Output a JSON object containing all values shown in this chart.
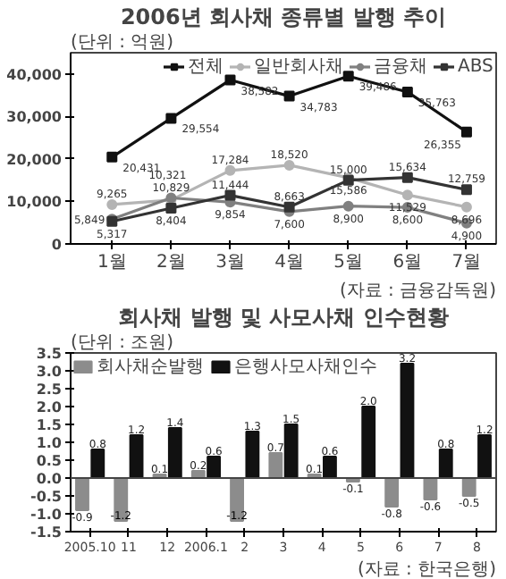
{
  "chart_data": [
    {
      "type": "line",
      "title": "2006년 회사채 종류별 발행 추이",
      "categories": [
        "1월",
        "2월",
        "3월",
        "4월",
        "5월",
        "6월",
        "7월"
      ],
      "series": [
        {
          "name": "전체",
          "color": "#111111",
          "marker": "square",
          "values": [
            20431,
            29554,
            38582,
            34783,
            39486,
            35763,
            26355
          ],
          "value_labels": [
            "20,431",
            "29,554",
            "38,582",
            "34,783",
            "39,486",
            "35,763",
            "26,355"
          ]
        },
        {
          "name": "일반회사채",
          "color": "#b4b4b4",
          "marker": "circle",
          "values": [
            9265,
            10321,
            17284,
            18520,
            15586,
            11529,
            8696
          ],
          "value_labels": [
            "9,265",
            "10,321",
            "17,284",
            "18,520",
            "15,586",
            "11,529",
            "8,696"
          ]
        },
        {
          "name": "금융채",
          "color": "#808080",
          "marker": "circle",
          "values": [
            5849,
            10829,
            9854,
            7600,
            8900,
            8600,
            4900
          ],
          "value_labels": [
            "5,849",
            "10,829",
            "9,854",
            "7,600",
            "8,900",
            "8,600",
            "4,900"
          ]
        },
        {
          "name": "ABS",
          "color": "#333333",
          "marker": "square",
          "values": [
            5317,
            8404,
            11444,
            8663,
            15000,
            15634,
            12759
          ],
          "value_labels": [
            "5,317",
            "8,404",
            "11,444",
            "8,663",
            "15,000",
            "15,634",
            "12,759"
          ]
        }
      ],
      "ylim": [
        0,
        45000
      ],
      "yticks": [
        0,
        {
          "value": 10000,
          "label": "10,000"
        },
        {
          "value": 20000,
          "label": "20,000"
        },
        {
          "value": 30000,
          "label": "30,000"
        },
        {
          "value": 40000,
          "label": "40,000"
        }
      ],
      "legend": "top right",
      "grid": false,
      "line_style": "solid",
      "annotations": [
        "(단위 : 억원)",
        "(자료 : 금융감독원)"
      ]
    },
    {
      "type": "bar",
      "title": "회사채 발행 및 사모사채 인수현황",
      "categories": [
        "2005.10",
        "11",
        "12",
        "2006.1",
        "2",
        "3",
        "4",
        "5",
        "6",
        "7",
        "8"
      ],
      "series": [
        {
          "name": "회사채순발행",
          "color": "#8c8c8c",
          "values": [
            -0.9,
            -1.2,
            0.1,
            0.2,
            -1.2,
            0.7,
            0.1,
            -0.1,
            -0.8,
            -0.6,
            -0.5
          ],
          "value_labels": [
            "-0.9",
            "-1.2",
            "0.1",
            "0.2",
            "-1.2",
            "0.7",
            "0.1",
            "-0.1",
            "-0.8",
            "-0.6",
            "-0.5"
          ]
        },
        {
          "name": "은행사모사채인수",
          "color": "#111111",
          "values": [
            0.8,
            1.2,
            1.4,
            0.6,
            1.3,
            1.5,
            0.6,
            2.0,
            3.2,
            0.8,
            1.2
          ],
          "value_labels": [
            "0.8",
            "1.2",
            "1.4",
            "0.6",
            "1.3",
            "1.5",
            "0.6",
            "2.0",
            "3.2",
            "0.8",
            "1.2"
          ]
        }
      ],
      "ylim": [
        -1.5,
        3.5
      ],
      "yticks": [
        {
          "value": -1.5,
          "label": "-1.5"
        },
        {
          "value": -1.0,
          "label": "-1.0"
        },
        {
          "value": -0.5,
          "label": "-0.5"
        },
        {
          "value": 0,
          "label": "0.0"
        },
        {
          "value": 0.5,
          "label": "0.5"
        },
        {
          "value": 1.0,
          "label": "1.0"
        },
        {
          "value": 1.5,
          "label": "1.5"
        },
        {
          "value": 2.0,
          "label": "2.0"
        },
        {
          "value": 2.5,
          "label": "2.5"
        },
        {
          "value": 3.0,
          "label": "3.0"
        },
        {
          "value": 3.5,
          "label": "3.5"
        }
      ],
      "legend": "top left",
      "grid": false,
      "ref_lines": [
        {
          "axis": "y",
          "value": 0,
          "color": "#444444"
        }
      ],
      "annotations": [
        "(단위 : 조원)",
        "(자료 : 한국은행)"
      ]
    }
  ]
}
